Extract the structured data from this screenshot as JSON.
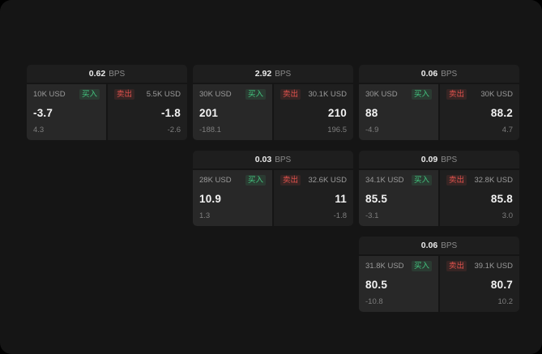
{
  "labels": {
    "bps": "BPS",
    "buy": "买入",
    "sell": "卖出"
  },
  "colors": {
    "background": "#151515",
    "card_header": "#1e1e1e",
    "buy_panel": "#282828",
    "sell_panel": "#1f1f1f",
    "buy_accent": "#43c57f",
    "sell_accent": "#e2524d"
  },
  "cards": [
    {
      "bps": "0.62",
      "buy_size": "10K USD",
      "buy_value": "-3.7",
      "buy_sub": "4.3",
      "sell_size": "5.5K USD",
      "sell_value": "-1.8",
      "sell_sub": "-2.6"
    },
    {
      "bps": "2.92",
      "buy_size": "30K USD",
      "buy_value": "201",
      "buy_sub": "-188.1",
      "sell_size": "30.1K USD",
      "sell_value": "210",
      "sell_sub": "196.5"
    },
    {
      "bps": "0.06",
      "buy_size": "30K USD",
      "buy_value": "88",
      "buy_sub": "-4.9",
      "sell_size": "30K USD",
      "sell_value": "88.2",
      "sell_sub": "4.7"
    },
    {
      "bps": "0.03",
      "buy_size": "28K USD",
      "buy_value": "10.9",
      "buy_sub": "1.3",
      "sell_size": "32.6K USD",
      "sell_value": "11",
      "sell_sub": "-1.8"
    },
    {
      "bps": "0.09",
      "buy_size": "34.1K USD",
      "buy_value": "85.5",
      "buy_sub": "-3.1",
      "sell_size": "32.8K USD",
      "sell_value": "85.8",
      "sell_sub": "3.0"
    },
    {
      "bps": "0.06",
      "buy_size": "31.8K USD",
      "buy_value": "80.5",
      "buy_sub": "-10.8",
      "sell_size": "39.1K USD",
      "sell_value": "80.7",
      "sell_sub": "10.2"
    }
  ]
}
